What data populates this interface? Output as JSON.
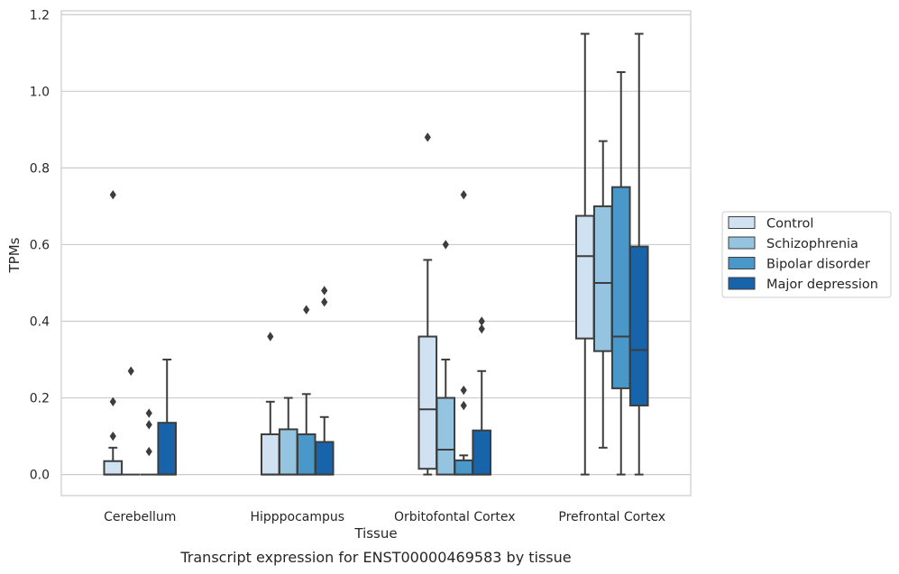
{
  "chart_data": {
    "type": "boxplot",
    "caption": "Transcript expression for ENST00000469583 by tissue",
    "xlabel": "Tissue",
    "ylabel": "TPMs",
    "ylim": [
      -0.055,
      1.21
    ],
    "yticks": [
      "0.0",
      "0.2",
      "0.4",
      "0.6",
      "0.8",
      "1.0",
      "1.2"
    ],
    "grid": "horizontal",
    "legend_position": "right",
    "categories": [
      "Cerebellum",
      "Hipppocampus",
      "Orbitofontal Cortex",
      "Prefrontal Cortex"
    ],
    "series": [
      {
        "name": "Control",
        "color": "#d0e1f2",
        "boxes": [
          {
            "q1": 0.0,
            "median": 0.0,
            "q3": 0.035,
            "whislo": 0.0,
            "whishi": 0.07,
            "fliers": [
              0.1,
              0.19,
              0.73
            ]
          },
          {
            "q1": 0.0,
            "median": 0.0,
            "q3": 0.105,
            "whislo": 0.0,
            "whishi": 0.19,
            "fliers": [
              0.36
            ]
          },
          {
            "q1": 0.015,
            "median": 0.17,
            "q3": 0.36,
            "whislo": 0.0,
            "whishi": 0.56,
            "fliers": [
              0.88
            ]
          },
          {
            "q1": 0.355,
            "median": 0.57,
            "q3": 0.675,
            "whislo": 0.0,
            "whishi": 1.15,
            "fliers": []
          }
        ]
      },
      {
        "name": "Schizophrenia",
        "color": "#94c4df",
        "boxes": [
          {
            "q1": 0.0,
            "median": 0.0,
            "q3": 0.0,
            "whislo": 0.0,
            "whishi": 0.0,
            "fliers": [
              0.27
            ]
          },
          {
            "q1": 0.0,
            "median": 0.0,
            "q3": 0.118,
            "whislo": 0.0,
            "whishi": 0.2,
            "fliers": []
          },
          {
            "q1": 0.0,
            "median": 0.065,
            "q3": 0.2,
            "whislo": 0.0,
            "whishi": 0.3,
            "fliers": [
              0.6
            ]
          },
          {
            "q1": 0.322,
            "median": 0.5,
            "q3": 0.7,
            "whislo": 0.07,
            "whishi": 0.87,
            "fliers": []
          }
        ]
      },
      {
        "name": "Bipolar disorder",
        "color": "#4a98c9",
        "boxes": [
          {
            "q1": 0.0,
            "median": 0.0,
            "q3": 0.0,
            "whislo": 0.0,
            "whishi": 0.0,
            "fliers": [
              0.06,
              0.13,
              0.16
            ]
          },
          {
            "q1": 0.0,
            "median": 0.0,
            "q3": 0.105,
            "whislo": 0.0,
            "whishi": 0.21,
            "fliers": [
              0.43
            ]
          },
          {
            "q1": 0.0,
            "median": 0.0,
            "q3": 0.037,
            "whislo": 0.0,
            "whishi": 0.05,
            "fliers": [
              0.18,
              0.22,
              0.73
            ]
          },
          {
            "q1": 0.225,
            "median": 0.36,
            "q3": 0.75,
            "whislo": 0.0,
            "whishi": 1.05,
            "fliers": []
          }
        ]
      },
      {
        "name": "Major depression",
        "color": "#1764ab",
        "boxes": [
          {
            "q1": 0.0,
            "median": 0.0,
            "q3": 0.135,
            "whislo": 0.0,
            "whishi": 0.3,
            "fliers": []
          },
          {
            "q1": 0.0,
            "median": 0.0,
            "q3": 0.085,
            "whislo": 0.0,
            "whishi": 0.15,
            "fliers": [
              0.45,
              0.48
            ]
          },
          {
            "q1": 0.0,
            "median": 0.0,
            "q3": 0.115,
            "whislo": 0.0,
            "whishi": 0.27,
            "fliers": [
              0.38,
              0.4
            ]
          },
          {
            "q1": 0.18,
            "median": 0.325,
            "q3": 0.595,
            "whislo": 0.0,
            "whishi": 1.15,
            "fliers": []
          }
        ]
      }
    ]
  }
}
